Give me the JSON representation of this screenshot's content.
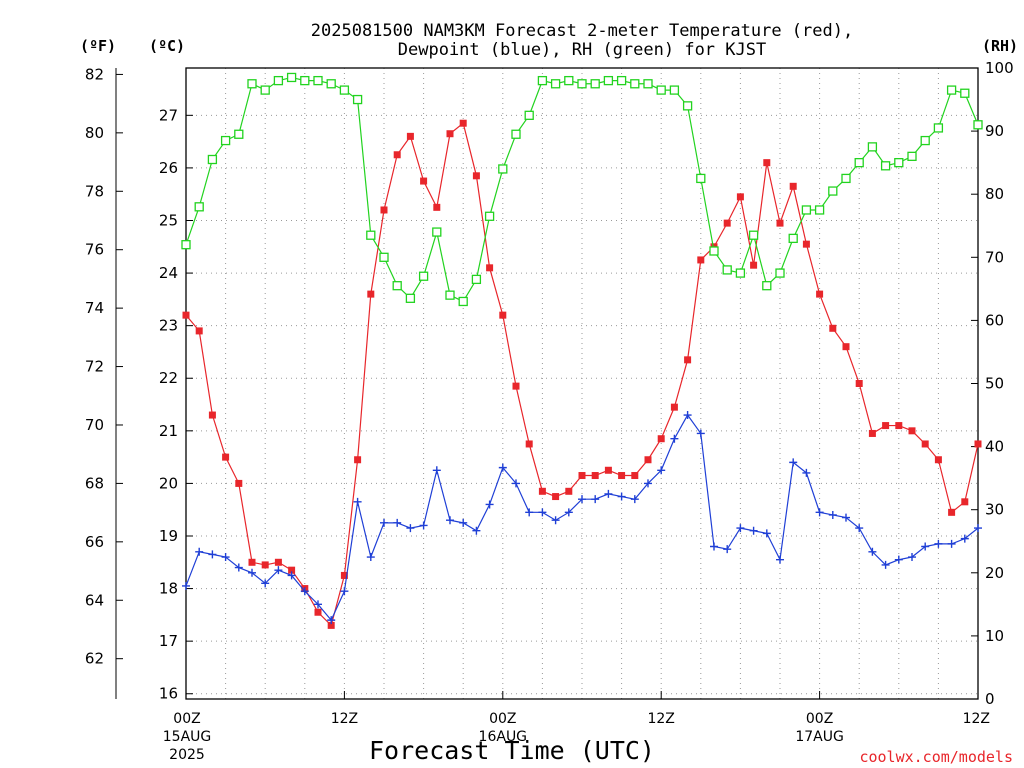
{
  "chart_data": {
    "type": "line",
    "title_line1": "2025081500 NAM3KM Forecast 2-meter Temperature (red),",
    "title_line2": "Dewpoint (blue), RH (green) for KJST",
    "xlabel": "Forecast Time (UTC)",
    "credit": "coolwx.com/models",
    "units": {
      "fahrenheit": "(ºF)",
      "celsius": "(ºC)",
      "rh": "(RH)"
    },
    "x_hours": [
      0,
      1,
      2,
      3,
      4,
      5,
      6,
      7,
      8,
      9,
      10,
      11,
      12,
      13,
      14,
      15,
      16,
      17,
      18,
      19,
      20,
      21,
      22,
      23,
      24,
      25,
      26,
      27,
      28,
      29,
      30,
      31,
      32,
      33,
      34,
      35,
      36,
      37,
      38,
      39,
      40,
      41,
      42,
      43,
      44,
      45,
      46,
      47,
      48,
      49,
      50,
      51,
      52,
      53,
      54,
      55,
      56,
      57,
      58,
      59,
      60
    ],
    "x_ticks": [
      {
        "hour": 0,
        "label": "00Z",
        "sub1": "15AUG",
        "sub2": "2025"
      },
      {
        "hour": 12,
        "label": "12Z",
        "sub1": "",
        "sub2": ""
      },
      {
        "hour": 24,
        "label": "00Z",
        "sub1": "16AUG",
        "sub2": ""
      },
      {
        "hour": 36,
        "label": "12Z",
        "sub1": "",
        "sub2": ""
      },
      {
        "hour": 48,
        "label": "00Z",
        "sub1": "17AUG",
        "sub2": ""
      },
      {
        "hour": 60,
        "label": "12Z",
        "sub1": "",
        "sub2": ""
      }
    ],
    "celsius_ticks": [
      "16",
      "17",
      "18",
      "19",
      "20",
      "21",
      "22",
      "23",
      "24",
      "25",
      "26",
      "27"
    ],
    "fahrenheit_ticks": [
      "62",
      "64",
      "66",
      "68",
      "70",
      "72",
      "74",
      "76",
      "78",
      "80",
      "82"
    ],
    "rh_ticks": [
      "0",
      "10",
      "20",
      "30",
      "40",
      "50",
      "60",
      "70",
      "80",
      "90",
      "100"
    ],
    "ylim_celsius": [
      15.9,
      27.9
    ],
    "ylim_rh": [
      0,
      100
    ],
    "grid": true,
    "series": [
      {
        "name": "Temperature (red)",
        "unit": "°C",
        "color": "#e8262b",
        "marker": "filled-square",
        "values": [
          23.2,
          22.9,
          21.3,
          20.5,
          20.0,
          18.5,
          18.45,
          18.5,
          18.35,
          18.0,
          17.55,
          17.3,
          18.25,
          20.45,
          23.6,
          25.2,
          26.25,
          26.6,
          25.75,
          25.25,
          26.65,
          26.85,
          25.85,
          24.1,
          23.2,
          21.85,
          20.75,
          19.85,
          19.75,
          19.85,
          20.15,
          20.15,
          20.25,
          20.15,
          20.15,
          20.45,
          20.85,
          21.45,
          22.35,
          24.25,
          24.5,
          24.95,
          25.45,
          24.15,
          26.1,
          24.95,
          25.65,
          24.55,
          23.6,
          22.95,
          22.6,
          21.9,
          20.95,
          21.1,
          21.1,
          21.0,
          20.75,
          20.45,
          19.45,
          19.65,
          20.75
        ]
      },
      {
        "name": "Dewpoint (blue)",
        "unit": "°C",
        "color": "#1f3fd6",
        "marker": "plus",
        "values": [
          18.05,
          18.7,
          18.65,
          18.6,
          18.4,
          18.3,
          18.1,
          18.35,
          18.25,
          17.95,
          17.7,
          17.4,
          17.95,
          19.65,
          18.6,
          19.25,
          19.25,
          19.15,
          19.2,
          20.25,
          19.3,
          19.25,
          19.1,
          19.6,
          20.3,
          20.0,
          19.45,
          19.45,
          19.3,
          19.45,
          19.7,
          19.7,
          19.8,
          19.75,
          19.7,
          20.0,
          20.25,
          20.85,
          21.3,
          20.95,
          18.8,
          18.75,
          19.15,
          19.1,
          19.05,
          18.55,
          20.4,
          20.2,
          19.45,
          19.4,
          19.35,
          19.15,
          18.7,
          18.45,
          18.55,
          18.6,
          18.8,
          18.85,
          18.85,
          18.95,
          19.15
        ]
      },
      {
        "name": "RH (green)",
        "unit": "%",
        "color": "#22d31f",
        "marker": "open-square",
        "values": [
          72,
          78,
          85.5,
          88.5,
          89.5,
          97.5,
          96.5,
          98,
          98.5,
          98,
          98,
          97.5,
          96.5,
          95,
          73.5,
          70,
          65.5,
          63.5,
          67,
          74,
          64,
          63,
          66.5,
          76.5,
          84,
          89.5,
          92.5,
          98,
          97.5,
          98,
          97.5,
          97.5,
          98,
          98,
          97.5,
          97.5,
          96.5,
          96.5,
          94,
          82.5,
          71,
          68,
          67.5,
          73.5,
          65.5,
          67.5,
          73,
          77.5,
          77.5,
          80.5,
          82.5,
          85,
          87.5,
          84.5,
          85,
          86,
          88.5,
          90.5,
          96.5,
          96,
          91
        ]
      }
    ]
  }
}
